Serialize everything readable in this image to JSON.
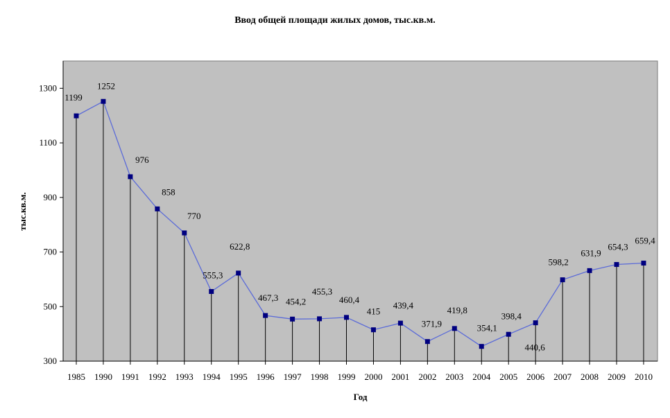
{
  "chart_data": {
    "type": "line",
    "title": "Ввод общей площади жилых домов, тыс.кв.м.",
    "xlabel": "Год",
    "ylabel": "тыс.кв.м.",
    "categories": [
      "1985",
      "1990",
      "1991",
      "1992",
      "1993",
      "1994",
      "1995",
      "1996",
      "1997",
      "1998",
      "1999",
      "2000",
      "2001",
      "2002",
      "2003",
      "2004",
      "2005",
      "2006",
      "2007",
      "2008",
      "2009",
      "2010"
    ],
    "values": [
      1199,
      1252,
      976,
      858,
      770,
      555.3,
      622.8,
      467.3,
      454.2,
      455.3,
      460.4,
      415,
      439.4,
      371.9,
      419.8,
      354.1,
      398.4,
      440.6,
      598.2,
      631.9,
      654.3,
      659.4
    ],
    "data_labels": [
      "1199",
      "1252",
      "976",
      "858",
      "770",
      "555,3",
      "622,8",
      "467,3",
      "454,2",
      "455,3",
      "460,4",
      "415",
      "439,4",
      "371,9",
      "419,8",
      "354,1",
      "398,4",
      "440,6",
      "598,2",
      "631,9",
      "654,3",
      "659,4"
    ],
    "ylim": [
      300,
      1400
    ],
    "yticks": [
      "300",
      "500",
      "700",
      "900",
      "1100",
      "1300"
    ],
    "ytick_values": [
      300,
      500,
      700,
      900,
      1100,
      1300
    ],
    "grid": false,
    "drop_lines": true,
    "legend": "none",
    "colors": {
      "plot_background": "#c0c0c0",
      "line": "#5b6bd8",
      "marker": "#000080",
      "drop_line": "#000000"
    }
  }
}
